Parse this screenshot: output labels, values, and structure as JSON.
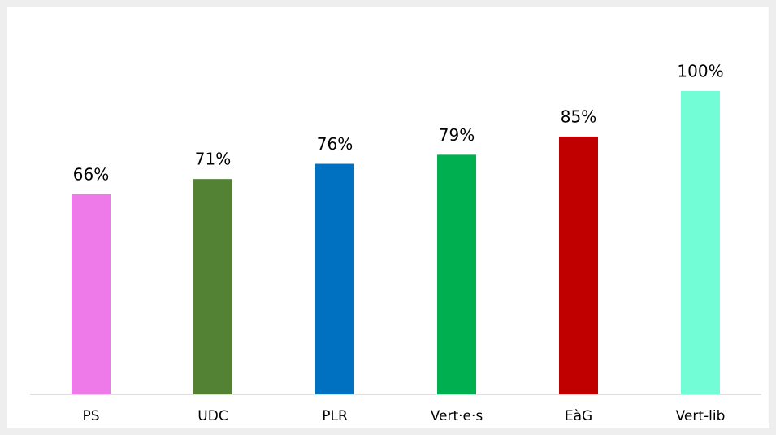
{
  "chart_data": {
    "type": "bar",
    "categories": [
      "PS",
      "UDC",
      "PLR",
      "Vert·e·s",
      "EàG",
      "Vert-lib"
    ],
    "values": [
      66,
      71,
      76,
      79,
      85,
      100
    ],
    "value_labels": [
      "66%",
      "71%",
      "76%",
      "79%",
      "85%",
      "100%"
    ],
    "colors": [
      "#ee7ae9",
      "#548235",
      "#0070c0",
      "#00b050",
      "#c00000",
      "#73fdd6"
    ],
    "ylim": [
      0,
      100
    ]
  }
}
